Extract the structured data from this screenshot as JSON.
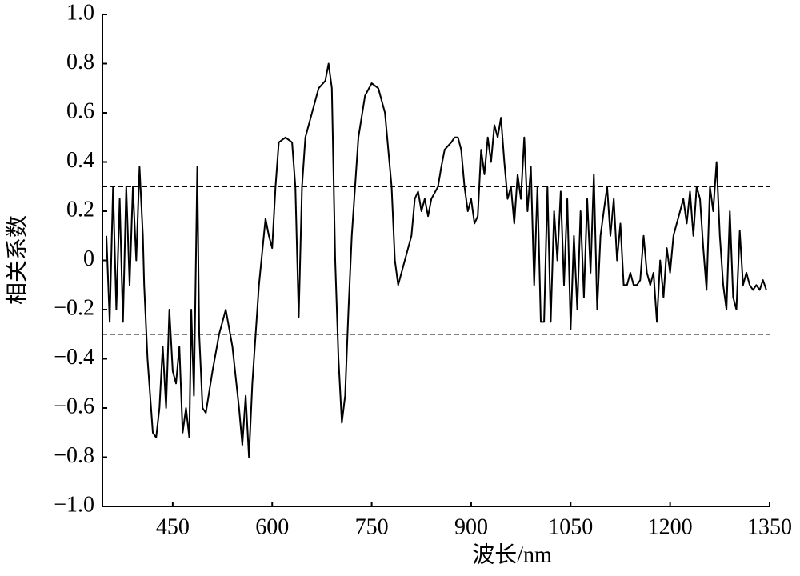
{
  "chart_data": {
    "type": "line",
    "xlabel": "波长/nm",
    "ylabel": "相关系数",
    "color": "#000000",
    "xlim": [
      344,
      1350
    ],
    "ylim": [
      -1,
      1
    ],
    "xticks": [
      450,
      600,
      750,
      900,
      1050,
      1200,
      1350
    ],
    "yticks": [
      {
        "value": 1,
        "label": "1.0"
      },
      0.8,
      0.6,
      0.4,
      0.2,
      0,
      {
        "value": -0.2,
        "label": "−0.2"
      },
      {
        "value": -0.4,
        "label": "−0.4"
      },
      {
        "value": -0.6,
        "label": "−0.6"
      },
      {
        "value": -0.8,
        "label": "−0.8"
      },
      {
        "value": -1,
        "label": "−1.0"
      }
    ],
    "reference_lines": [
      0.3,
      -0.3
    ],
    "x": [
      350,
      355,
      360,
      365,
      370,
      375,
      380,
      385,
      390,
      395,
      400,
      405,
      407,
      412,
      420,
      425,
      430,
      435,
      440,
      445,
      450,
      455,
      460,
      465,
      470,
      475,
      478,
      482,
      487,
      490,
      495,
      500,
      510,
      520,
      530,
      540,
      550,
      555,
      560,
      565,
      570,
      580,
      590,
      595,
      600,
      605,
      610,
      620,
      630,
      635,
      640,
      645,
      650,
      660,
      670,
      680,
      685,
      690,
      695,
      700,
      705,
      710,
      715,
      720,
      730,
      740,
      750,
      760,
      770,
      780,
      785,
      790,
      800,
      810,
      815,
      820,
      825,
      830,
      835,
      840,
      850,
      855,
      860,
      870,
      875,
      880,
      885,
      890,
      895,
      900,
      905,
      910,
      915,
      920,
      925,
      930,
      935,
      940,
      945,
      950,
      955,
      960,
      965,
      970,
      975,
      980,
      985,
      990,
      995,
      1000,
      1005,
      1010,
      1015,
      1020,
      1025,
      1030,
      1035,
      1040,
      1045,
      1050,
      1055,
      1060,
      1065,
      1070,
      1075,
      1080,
      1085,
      1090,
      1095,
      1100,
      1105,
      1110,
      1115,
      1120,
      1125,
      1130,
      1135,
      1140,
      1145,
      1150,
      1155,
      1160,
      1165,
      1170,
      1175,
      1180,
      1185,
      1190,
      1195,
      1200,
      1205,
      1210,
      1215,
      1220,
      1225,
      1230,
      1235,
      1240,
      1245,
      1250,
      1255,
      1260,
      1265,
      1270,
      1275,
      1280,
      1285,
      1290,
      1295,
      1300,
      1305,
      1310,
      1315,
      1320,
      1325,
      1330,
      1335,
      1340,
      1345
    ],
    "values": [
      0.1,
      -0.25,
      0.3,
      -0.2,
      0.25,
      -0.25,
      0.3,
      -0.1,
      0.3,
      0.0,
      0.38,
      0.1,
      -0.1,
      -0.4,
      -0.7,
      -0.72,
      -0.6,
      -0.35,
      -0.6,
      -0.2,
      -0.45,
      -0.5,
      -0.35,
      -0.7,
      -0.6,
      -0.72,
      -0.2,
      -0.55,
      0.38,
      -0.3,
      -0.6,
      -0.62,
      -0.45,
      -0.3,
      -0.2,
      -0.35,
      -0.6,
      -0.75,
      -0.55,
      -0.8,
      -0.5,
      -0.1,
      0.17,
      0.1,
      0.05,
      0.3,
      0.48,
      0.5,
      0.48,
      0.3,
      -0.23,
      0.3,
      0.5,
      0.6,
      0.7,
      0.73,
      0.8,
      0.7,
      0.0,
      -0.4,
      -0.66,
      -0.55,
      -0.2,
      0.1,
      0.5,
      0.67,
      0.72,
      0.7,
      0.6,
      0.3,
      0.0,
      -0.1,
      0.0,
      0.1,
      0.25,
      0.28,
      0.2,
      0.25,
      0.18,
      0.25,
      0.3,
      0.38,
      0.45,
      0.48,
      0.5,
      0.5,
      0.45,
      0.3,
      0.2,
      0.25,
      0.15,
      0.18,
      0.45,
      0.35,
      0.5,
      0.4,
      0.55,
      0.5,
      0.58,
      0.4,
      0.25,
      0.3,
      0.15,
      0.35,
      0.25,
      0.5,
      0.2,
      0.38,
      -0.1,
      0.3,
      -0.25,
      -0.25,
      0.3,
      -0.25,
      0.2,
      0.0,
      0.28,
      -0.1,
      0.25,
      -0.28,
      0.1,
      -0.2,
      0.2,
      -0.15,
      0.25,
      -0.05,
      0.35,
      -0.2,
      0.1,
      0.2,
      0.3,
      0.1,
      0.25,
      0.0,
      0.15,
      -0.1,
      -0.1,
      -0.05,
      -0.1,
      -0.1,
      -0.08,
      0.1,
      -0.05,
      -0.1,
      -0.05,
      -0.25,
      0.0,
      -0.15,
      0.05,
      -0.05,
      0.1,
      0.15,
      0.2,
      0.25,
      0.15,
      0.28,
      0.1,
      0.3,
      0.25,
      0.05,
      -0.12,
      0.3,
      0.2,
      0.4,
      0.1,
      -0.1,
      -0.2,
      0.2,
      -0.15,
      -0.2,
      0.12,
      -0.1,
      -0.05,
      -0.1,
      -0.12,
      -0.1,
      -0.12,
      -0.08,
      -0.12
    ]
  }
}
